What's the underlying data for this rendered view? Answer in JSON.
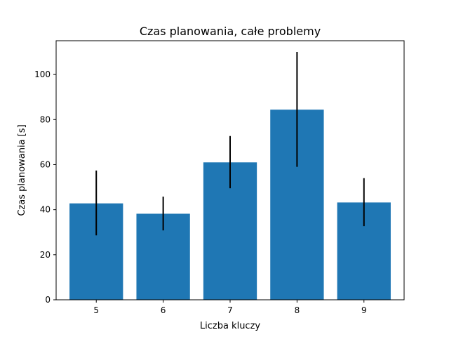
{
  "chart_data": {
    "type": "bar",
    "title": "Czas planowania, całe problemy",
    "xlabel": "Liczba kluczy",
    "ylabel": "Czas planowania [s]",
    "categories": [
      "5",
      "6",
      "7",
      "8",
      "9"
    ],
    "values": [
      42.8,
      38.2,
      61.0,
      84.4,
      43.2
    ],
    "error_low": [
      28.6,
      30.8,
      49.5,
      59.0,
      32.7
    ],
    "error_high": [
      57.4,
      45.8,
      72.7,
      110.0,
      54.0
    ],
    "ylim": [
      0,
      115
    ],
    "yticks": [
      0,
      20,
      40,
      60,
      80,
      100
    ],
    "bar_color": "#1f77b4",
    "error_color": "#000000",
    "grid": false
  }
}
